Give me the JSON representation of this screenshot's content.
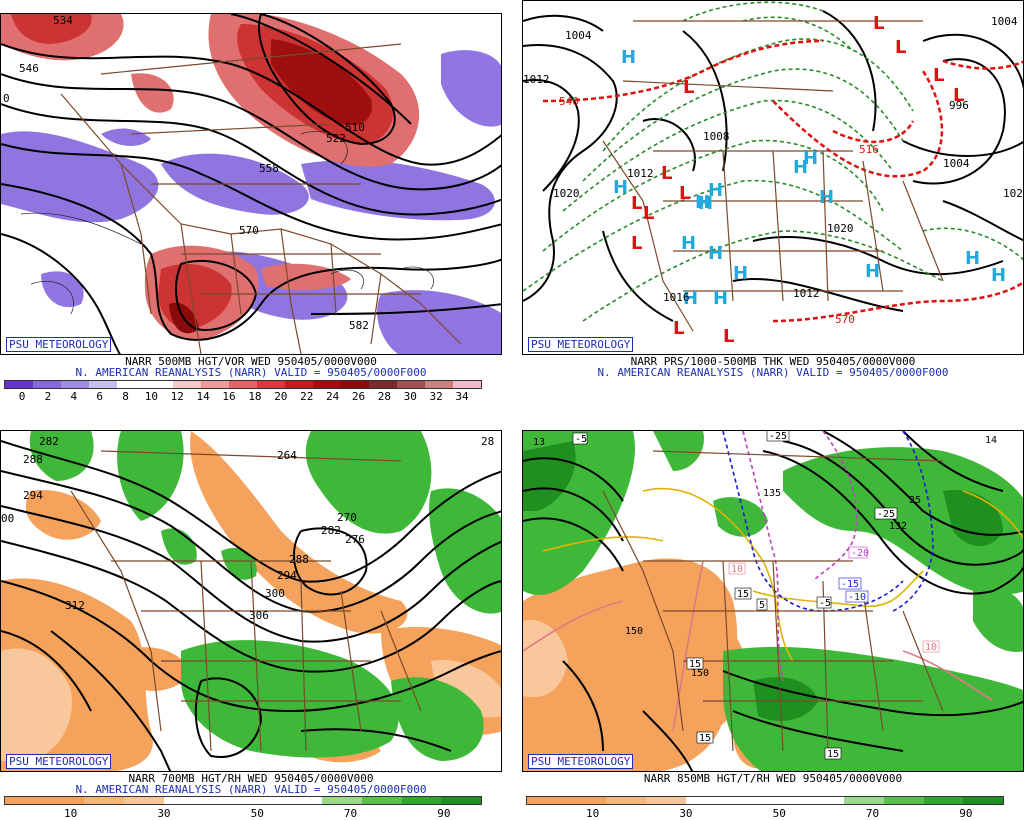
{
  "panels": [
    {
      "id": "p1",
      "badge": "PSU METEOROLOGY",
      "title": "NARR 500MB HGT/VOR WED 950405/0000V000",
      "subtitle": "N. AMERICAN REANALYSIS (NARR) VALID = 950405/0000F000",
      "contour_labels": [
        "534",
        "546",
        "510",
        "522",
        "558",
        "570",
        "582",
        "0"
      ],
      "colorbar": {
        "colors": [
          "#6633cc",
          "#8866dd",
          "#9f8be6",
          "#c9bdf0",
          "#ffffff",
          "#ffffff",
          "#f6c8c8",
          "#ee9a9a",
          "#e06565",
          "#d43b3b",
          "#c01d1d",
          "#a30c0c",
          "#8b0a0a",
          "#7a2a2a",
          "#a05050",
          "#cc8080",
          "#f2b8c8"
        ],
        "ticks": [
          "0",
          "2",
          "4",
          "6",
          "8",
          "10",
          "12",
          "14",
          "16",
          "18",
          "20",
          "22",
          "24",
          "26",
          "28",
          "30",
          "32",
          "34"
        ]
      }
    },
    {
      "id": "p2",
      "badge": "PSU METEOROLOGY",
      "title": "NARR PRS/1000-500MB THK WED 950405/0000V000",
      "subtitle": "N. AMERICAN REANALYSIS (NARR) VALID = 950405/0000F000",
      "contour_labels": [
        "1004",
        "1012",
        "1020",
        "1008",
        "1004",
        "996",
        "1004",
        "1020",
        "1012",
        "570",
        "540",
        "516",
        "1012",
        "1008",
        "1016",
        "102"
      ],
      "highs": 16,
      "lows": 12,
      "high_symbol": "H",
      "low_symbol": "L"
    },
    {
      "id": "p3",
      "badge": "PSU METEOROLOGY",
      "title": "NARR 700MB HGT/RH WED 950405/0000V000",
      "subtitle": "N. AMERICAN REANALYSIS (NARR) VALID = 950405/0000F000",
      "contour_labels": [
        "282",
        "288",
        "294",
        "312",
        "264",
        "270",
        "276",
        "282",
        "288",
        "294",
        "300",
        "306",
        "00",
        "28"
      ],
      "colorbar": {
        "colors": [
          "#f5a35c",
          "#f5a35c",
          "#f6b57a",
          "#f7c598",
          "#ffffff",
          "#ffffff",
          "#ffffff",
          "#ffffff",
          "#9ad98a",
          "#56c24a",
          "#2ea82a",
          "#1f8f1f"
        ],
        "ticks": [
          "10",
          "30",
          "50",
          "70",
          "90"
        ]
      }
    },
    {
      "id": "p4",
      "badge": "PSU METEOROLOGY",
      "title": "NARR 850MB HGT/T/RH WED 950405/0000V000",
      "subtitle": "",
      "contour_labels": [
        "-5",
        "-25",
        "135",
        "132",
        "-25",
        "-20",
        "-15",
        "-10",
        "-5",
        "5",
        "10",
        "15",
        "15",
        "15",
        "15",
        "10",
        "150",
        "150",
        "13",
        "14",
        "25"
      ],
      "colorbar": {
        "colors": [
          "#f5a35c",
          "#f5a35c",
          "#f6b57a",
          "#f7c598",
          "#ffffff",
          "#ffffff",
          "#ffffff",
          "#ffffff",
          "#9ad98a",
          "#56c24a",
          "#2ea82a",
          "#1f8f1f"
        ],
        "ticks": [
          "10",
          "30",
          "50",
          "70",
          "90"
        ]
      }
    }
  ]
}
